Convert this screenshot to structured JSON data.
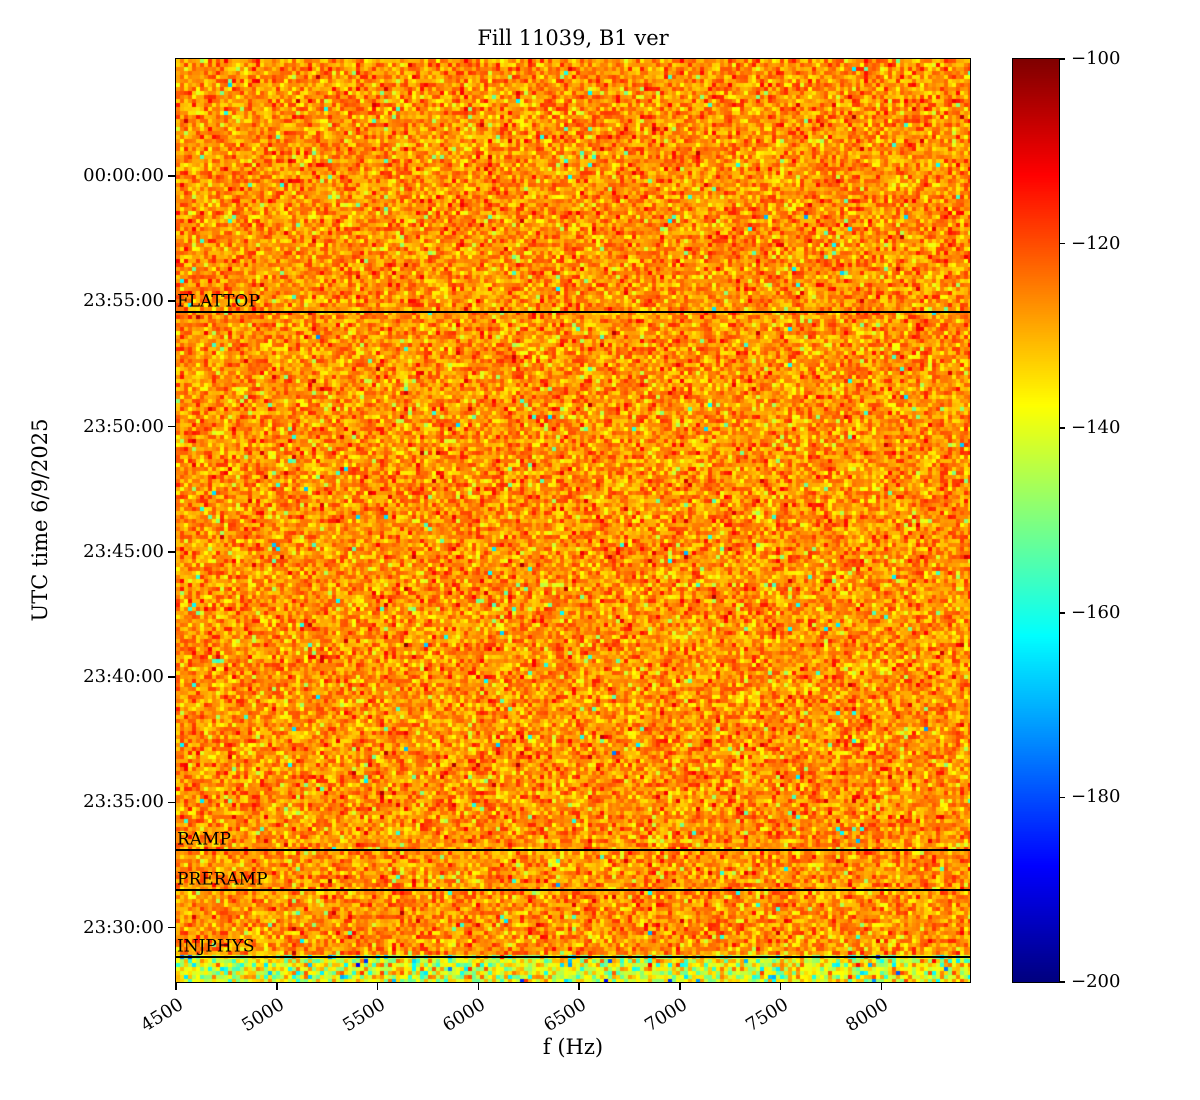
{
  "chart_data": {
    "type": "heatmap",
    "title": "Fill 11039, B1 ver",
    "xlabel": "f (Hz)",
    "ylabel": "UTC time 6/9/2025",
    "x_range_hz": [
      4500,
      8440
    ],
    "x_ticks": [
      4500,
      5000,
      5500,
      6000,
      6500,
      7000,
      7500,
      8000
    ],
    "y_time_top": "00:04:40",
    "y_time_bottom": "23:27:50",
    "y_ticks": [
      "00:00:00",
      "23:55:00",
      "23:50:00",
      "23:45:00",
      "23:40:00",
      "23:35:00",
      "23:30:00"
    ],
    "colormap": "jet",
    "value_range_db": [
      -200,
      -100
    ],
    "colorbar_ticks": [
      -100,
      -120,
      -140,
      -160,
      -180,
      -200
    ],
    "noise": {
      "main_mean": -126.5,
      "main_std": 6,
      "speck_prob": 0.02,
      "speck_extra_max": 35,
      "bottom_band_mean": -139,
      "bottom_band_std": 9,
      "bottom_band_speck_prob": 0.12,
      "bottom_band_start": "23:28:50"
    },
    "event_lines": [
      {
        "label": "FLATTOP",
        "time": "23:54:35"
      },
      {
        "label": "RAMP",
        "time": "23:33:05"
      },
      {
        "label": "PRERAMP",
        "time": "23:31:30"
      },
      {
        "label": "INJPHYS",
        "time": "23:28:50"
      }
    ]
  }
}
